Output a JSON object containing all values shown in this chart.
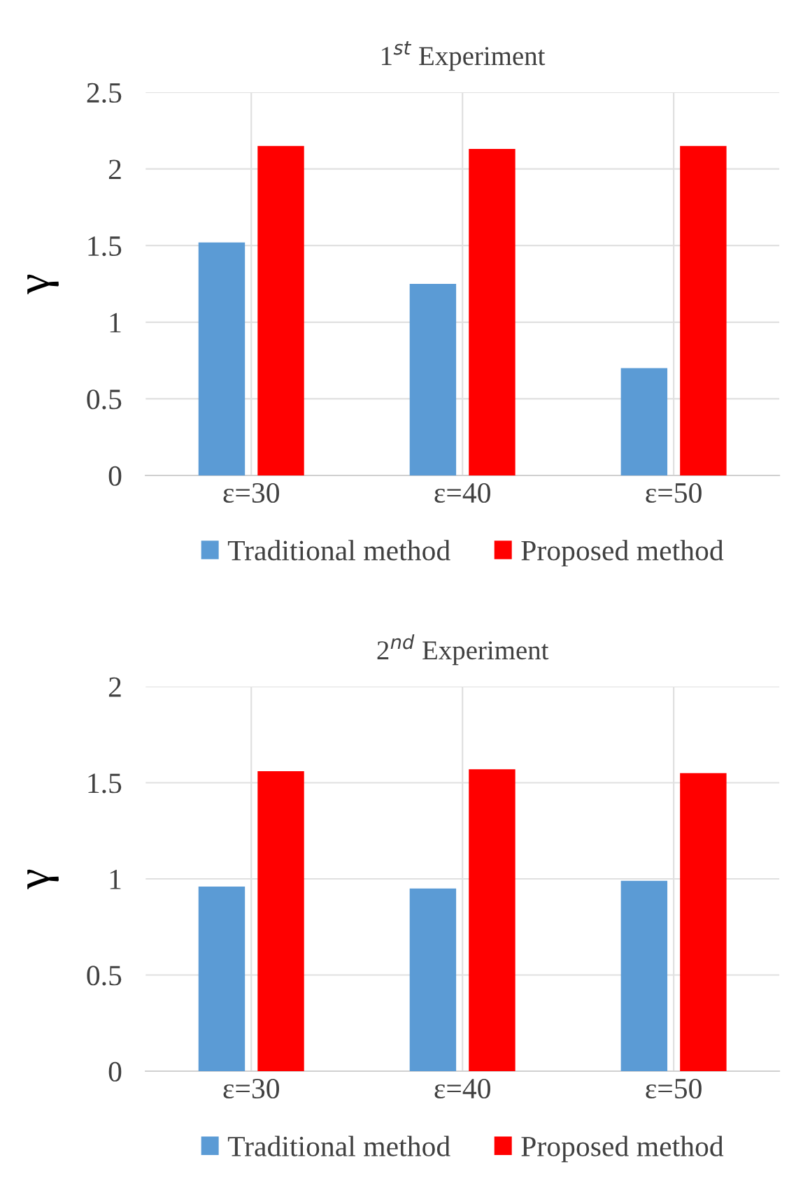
{
  "chart_data": [
    {
      "type": "bar",
      "title": "1$^{st}$ Experiment",
      "ylabel": "γ",
      "categories": [
        "ε=30",
        "ε=40",
        "ε=50"
      ],
      "series": [
        {
          "name": "Traditional method",
          "color": "#5b9bd5",
          "values": [
            1.52,
            1.25,
            0.7
          ]
        },
        {
          "name": "Proposed method",
          "color": "#ff0000",
          "values": [
            2.15,
            2.13,
            2.15
          ]
        }
      ],
      "ylim": [
        0,
        2.5
      ],
      "yticks": [
        0,
        0.5,
        1,
        1.5,
        2,
        2.5
      ],
      "grid": true,
      "legend": "bottom"
    },
    {
      "type": "bar",
      "title": "2$^{nd}$ Experiment",
      "ylabel": "γ",
      "categories": [
        "ε=30",
        "ε=40",
        "ε=50"
      ],
      "series": [
        {
          "name": "Traditional method",
          "color": "#5b9bd5",
          "values": [
            0.96,
            0.95,
            0.99
          ]
        },
        {
          "name": "Proposed method",
          "color": "#ff0000",
          "values": [
            1.56,
            1.57,
            1.55
          ]
        }
      ],
      "ylim": [
        0,
        2
      ],
      "yticks": [
        0,
        0.5,
        1,
        1.5,
        2
      ],
      "grid": true,
      "legend": "bottom"
    }
  ]
}
